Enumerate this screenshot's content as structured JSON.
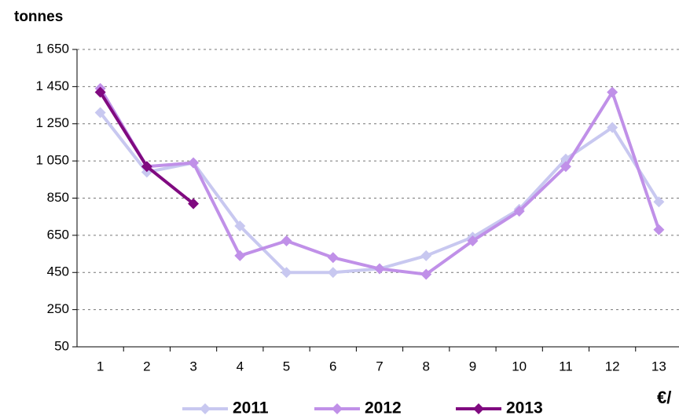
{
  "chart_data": {
    "type": "line",
    "y_label": "tonnes",
    "annotation": "€/",
    "categories": [
      "1",
      "2",
      "3",
      "4",
      "5",
      "6",
      "7",
      "8",
      "9",
      "10",
      "11",
      "12",
      "13"
    ],
    "series": [
      {
        "name": "2011",
        "color": "#c8c8f0",
        "values": [
          1310,
          990,
          1040,
          700,
          450,
          450,
          470,
          540,
          640,
          790,
          1060,
          1230,
          830
        ]
      },
      {
        "name": "2012",
        "color": "#c090e8",
        "values": [
          1440,
          1020,
          1040,
          540,
          620,
          530,
          470,
          440,
          620,
          780,
          1020,
          1420,
          680
        ]
      },
      {
        "name": "2013",
        "color": "#800a80",
        "values": [
          1420,
          1020,
          820,
          null,
          null,
          null,
          null,
          null,
          null,
          null,
          null,
          null,
          null
        ]
      }
    ],
    "ylim": [
      50,
      1650
    ],
    "yticks": [
      50,
      250,
      450,
      650,
      850,
      {
        "value": 1050,
        "label": "1 050"
      },
      {
        "value": 1250,
        "label": "1 250"
      },
      {
        "value": 1450,
        "label": "1 450"
      },
      {
        "value": 1650,
        "label": "1 650"
      }
    ],
    "grid": true,
    "legend": "bottom"
  }
}
